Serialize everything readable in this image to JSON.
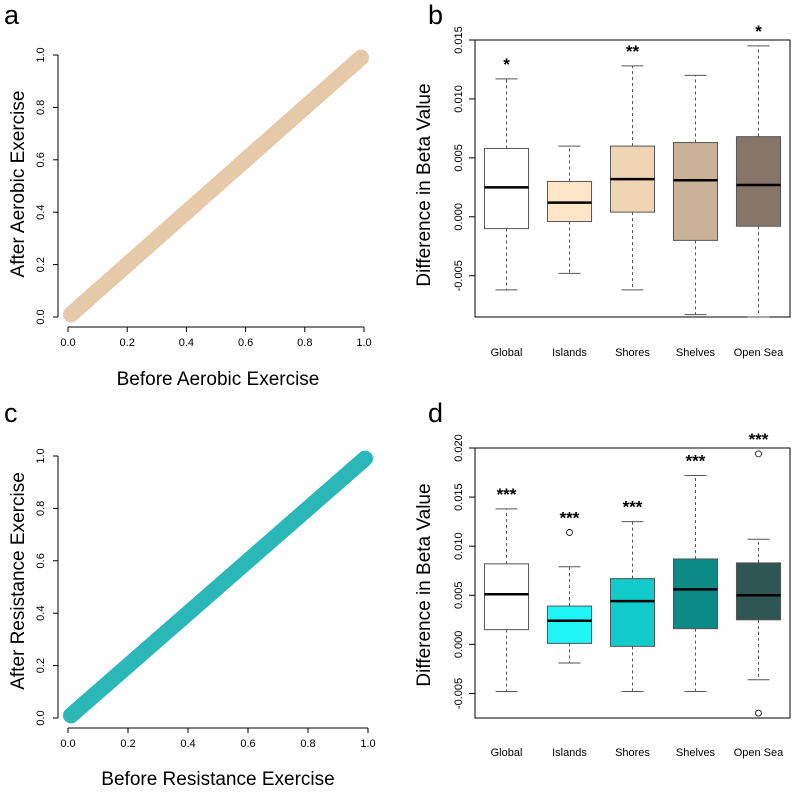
{
  "chart_data": [
    {
      "panel": "a",
      "type": "scatter",
      "xlabel": "Before Aerobic Exercise",
      "ylabel": "After Aerobic Exercise",
      "xlim": [
        0.0,
        1.0
      ],
      "ylim": [
        0.0,
        1.0
      ],
      "xticks": [
        "0.0",
        "0.2",
        "0.4",
        "0.6",
        "0.8",
        "1.0"
      ],
      "yticks": [
        "0.0",
        "0.2",
        "0.4",
        "0.6",
        "0.8",
        "1.0"
      ],
      "color": "#e6c9a8",
      "trend": {
        "slope": 1.0,
        "intercept": 0.0,
        "spread": 0.035
      },
      "points": [
        [
          0.02,
          0.03
        ],
        [
          0.05,
          0.04
        ],
        [
          0.08,
          0.09
        ],
        [
          0.1,
          0.12
        ],
        [
          0.15,
          0.14
        ],
        [
          0.2,
          0.22
        ],
        [
          0.25,
          0.24
        ],
        [
          0.3,
          0.31
        ],
        [
          0.35,
          0.34
        ],
        [
          0.4,
          0.42
        ],
        [
          0.45,
          0.44
        ],
        [
          0.5,
          0.51
        ],
        [
          0.55,
          0.54
        ],
        [
          0.6,
          0.62
        ],
        [
          0.65,
          0.64
        ],
        [
          0.7,
          0.71
        ],
        [
          0.75,
          0.74
        ],
        [
          0.8,
          0.81
        ],
        [
          0.85,
          0.84
        ],
        [
          0.9,
          0.91
        ],
        [
          0.95,
          0.94
        ],
        [
          0.98,
          0.99
        ]
      ]
    },
    {
      "panel": "b",
      "type": "box",
      "xlabel": "",
      "ylabel": "Difference in Beta Value",
      "ylim": [
        -0.0085,
        0.015
      ],
      "yticks": [
        -0.005,
        0.0,
        0.005,
        0.01,
        0.015
      ],
      "ytick_labels": [
        "-0.005",
        "0.000",
        "0.005",
        "0.010",
        "0.015"
      ],
      "categories": [
        "Global",
        "Islands",
        "Shores",
        "Shelves",
        "Open Sea"
      ],
      "boxes": [
        {
          "whisker_low": -0.0062,
          "q1": -0.001,
          "median": 0.0025,
          "q3": 0.0058,
          "whisker_high": 0.0117,
          "color": "#ffffff",
          "significance": "*",
          "outliers": []
        },
        {
          "whisker_low": -0.0048,
          "q1": -0.0004,
          "median": 0.0012,
          "q3": 0.003,
          "whisker_high": 0.006,
          "color": "#fde5c8",
          "significance": "",
          "outliers": []
        },
        {
          "whisker_low": -0.0062,
          "q1": 0.0004,
          "median": 0.0032,
          "q3": 0.006,
          "whisker_high": 0.0128,
          "color": "#f0d5b4",
          "significance": "**",
          "outliers": []
        },
        {
          "whisker_low": -0.0083,
          "q1": -0.002,
          "median": 0.0031,
          "q3": 0.0063,
          "whisker_high": 0.012,
          "color": "#c9b298",
          "significance": "",
          "outliers": []
        },
        {
          "whisker_low": -0.0085,
          "q1": -0.0008,
          "median": 0.0027,
          "q3": 0.0068,
          "whisker_high": 0.0145,
          "color": "#86766a",
          "significance": "*",
          "outliers": []
        }
      ]
    },
    {
      "panel": "c",
      "type": "scatter",
      "xlabel": "Before Resistance Exercise",
      "ylabel": "After Resistance Exercise",
      "xlim": [
        0.0,
        1.0
      ],
      "ylim": [
        0.0,
        1.0
      ],
      "xticks": [
        "0.0",
        "0.2",
        "0.4",
        "0.6",
        "0.8",
        "1.0"
      ],
      "yticks": [
        "0.0",
        "0.2",
        "0.4",
        "0.6",
        "0.8",
        "1.0"
      ],
      "color": "#2bb7b7",
      "trend": {
        "slope": 1.0,
        "intercept": 0.0,
        "spread": 0.035
      },
      "points": [
        [
          0.02,
          0.02
        ],
        [
          0.05,
          0.06
        ],
        [
          0.08,
          0.07
        ],
        [
          0.1,
          0.11
        ],
        [
          0.15,
          0.16
        ],
        [
          0.2,
          0.19
        ],
        [
          0.25,
          0.26
        ],
        [
          0.3,
          0.29
        ],
        [
          0.35,
          0.36
        ],
        [
          0.4,
          0.39
        ],
        [
          0.45,
          0.46
        ],
        [
          0.5,
          0.49
        ],
        [
          0.55,
          0.56
        ],
        [
          0.6,
          0.59
        ],
        [
          0.65,
          0.66
        ],
        [
          0.7,
          0.69
        ],
        [
          0.75,
          0.76
        ],
        [
          0.8,
          0.79
        ],
        [
          0.85,
          0.86
        ],
        [
          0.9,
          0.89
        ],
        [
          0.95,
          0.96
        ],
        [
          0.99,
          0.99
        ]
      ]
    },
    {
      "panel": "d",
      "type": "box",
      "xlabel": "",
      "ylabel": "Difference in Beta Value",
      "ylim": [
        -0.0075,
        0.02
      ],
      "yticks": [
        -0.005,
        0.0,
        0.005,
        0.01,
        0.015,
        0.02
      ],
      "ytick_labels": [
        "-0.005",
        "0.000",
        "0.005",
        "0.010",
        "0.015",
        "0.020"
      ],
      "categories": [
        "Global",
        "Islands",
        "Shores",
        "Shelves",
        "Open Sea"
      ],
      "boxes": [
        {
          "whisker_low": -0.0048,
          "q1": 0.0015,
          "median": 0.0051,
          "q3": 0.0082,
          "whisker_high": 0.0138,
          "color": "#ffffff",
          "significance": "***",
          "outliers": []
        },
        {
          "whisker_low": -0.0019,
          "q1": 0.0001,
          "median": 0.0024,
          "q3": 0.0039,
          "whisker_high": 0.0079,
          "color": "#1ff5f5",
          "significance": "***",
          "outliers": [
            0.0114
          ]
        },
        {
          "whisker_low": -0.0048,
          "q1": -0.0002,
          "median": 0.0044,
          "q3": 0.0067,
          "whisker_high": 0.0125,
          "color": "#12caca",
          "significance": "***",
          "outliers": []
        },
        {
          "whisker_low": -0.0048,
          "q1": 0.0016,
          "median": 0.0056,
          "q3": 0.0087,
          "whisker_high": 0.0172,
          "color": "#0e8a86",
          "significance": "***",
          "outliers": []
        },
        {
          "whisker_low": -0.0036,
          "q1": 0.0025,
          "median": 0.005,
          "q3": 0.0083,
          "whisker_high": 0.0107,
          "color": "#2e5753",
          "significance": "***",
          "outliers": [
            0.0194,
            -0.007
          ]
        }
      ]
    }
  ]
}
